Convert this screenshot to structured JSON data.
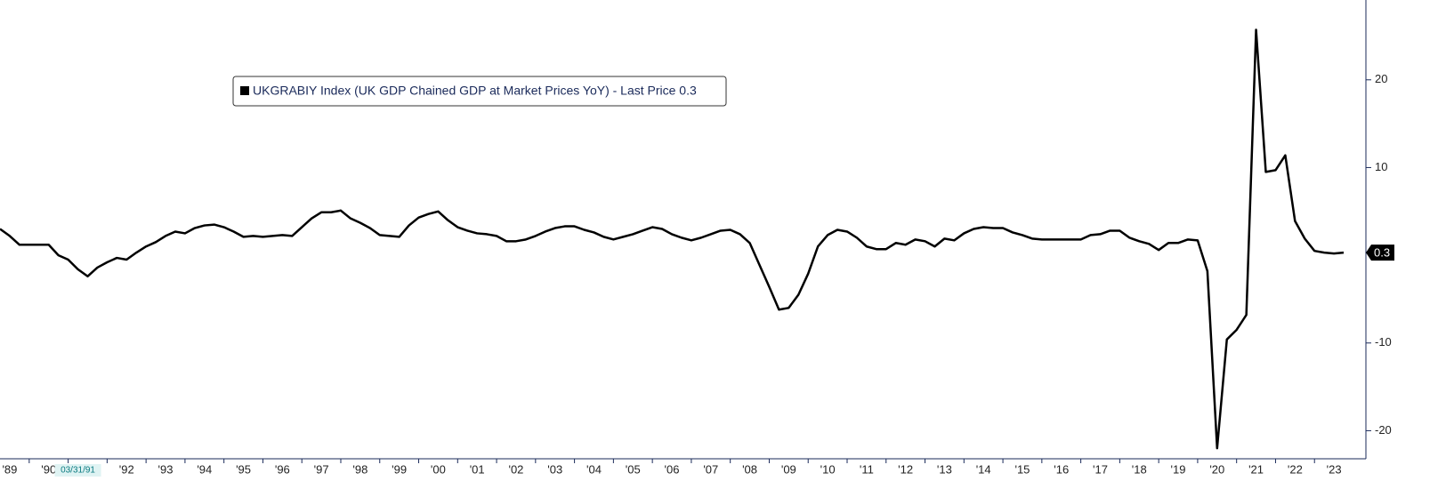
{
  "chart_data": {
    "type": "line",
    "legend": "UKGRABIY Index (UK GDP Chained GDP at Market Prices YoY) - Last Price 0.3",
    "annotation": "03/31/91",
    "annotation_x": 1991.25,
    "last_price": 0.3,
    "series": [
      {
        "name": "UKGRABIY Index (UK GDP Chained GDP at Market Prices YoY) - Last Price 0.3",
        "color": "#000000",
        "x": [
          1989.25,
          1989.5,
          1989.75,
          1990,
          1990.25,
          1990.5,
          1990.75,
          1991,
          1991.25,
          1991.5,
          1991.75,
          1992,
          1992.25,
          1992.5,
          1992.75,
          1993,
          1993.25,
          1993.5,
          1993.75,
          1994,
          1994.25,
          1994.5,
          1994.75,
          1995,
          1995.25,
          1995.5,
          1995.75,
          1996,
          1996.25,
          1996.5,
          1996.75,
          1997,
          1997.25,
          1997.5,
          1997.75,
          1998,
          1998.25,
          1998.5,
          1998.75,
          1999,
          1999.25,
          1999.5,
          1999.75,
          2000,
          2000.25,
          2000.5,
          2000.75,
          2001,
          2001.25,
          2001.5,
          2001.75,
          2002,
          2002.25,
          2002.5,
          2002.75,
          2003,
          2003.25,
          2003.5,
          2003.75,
          2004,
          2004.25,
          2004.5,
          2004.75,
          2005,
          2005.25,
          2005.5,
          2005.75,
          2006,
          2006.25,
          2006.5,
          2006.75,
          2007,
          2007.25,
          2007.5,
          2007.75,
          2008,
          2008.25,
          2008.5,
          2008.75,
          2009,
          2009.25,
          2009.5,
          2009.75,
          2010,
          2010.25,
          2010.5,
          2010.75,
          2011,
          2011.25,
          2011.5,
          2011.75,
          2012,
          2012.25,
          2012.5,
          2012.75,
          2013,
          2013.25,
          2013.5,
          2013.75,
          2014,
          2014.25,
          2014.5,
          2014.75,
          2015,
          2015.25,
          2015.5,
          2015.75,
          2016,
          2016.25,
          2016.5,
          2016.75,
          2017,
          2017.25,
          2017.5,
          2017.75,
          2018,
          2018.25,
          2018.5,
          2018.75,
          2019,
          2019.25,
          2019.5,
          2019.75,
          2020,
          2020.25,
          2020.5,
          2020.75,
          2021,
          2021.25,
          2021.5,
          2021.75,
          2022,
          2022.25,
          2022.5,
          2022.75,
          2023,
          2023.25,
          2023.5,
          2023.75
        ],
        "values": [
          3.0,
          2.2,
          1.2,
          1.2,
          1.2,
          1.2,
          0.0,
          -0.5,
          -1.6,
          -2.4,
          -1.4,
          -0.8,
          -0.3,
          -0.5,
          0.3,
          1.0,
          1.5,
          2.2,
          2.7,
          2.5,
          3.1,
          3.4,
          3.5,
          3.2,
          2.7,
          2.1,
          2.2,
          2.1,
          2.2,
          2.3,
          2.2,
          3.2,
          4.2,
          4.9,
          4.9,
          5.1,
          4.2,
          3.7,
          3.1,
          2.3,
          2.2,
          2.1,
          3.4,
          4.3,
          4.7,
          5.0,
          4.0,
          3.2,
          2.8,
          2.5,
          2.4,
          2.2,
          1.6,
          1.6,
          1.8,
          2.2,
          2.7,
          3.1,
          3.3,
          3.3,
          2.9,
          2.6,
          2.1,
          1.8,
          2.1,
          2.4,
          2.8,
          3.2,
          3.0,
          2.4,
          2.0,
          1.7,
          2.0,
          2.4,
          2.8,
          2.9,
          2.4,
          1.4,
          -1.1,
          -3.6,
          -6.2,
          -6.0,
          -4.5,
          -2.1,
          1.0,
          2.3,
          2.9,
          2.7,
          2.0,
          1.0,
          0.7,
          0.7,
          1.4,
          1.2,
          1.8,
          1.6,
          1.0,
          1.9,
          1.7,
          2.5,
          3.0,
          3.2,
          3.1,
          3.1,
          2.6,
          2.3,
          1.9,
          1.8,
          1.8,
          1.8,
          1.8,
          1.8,
          2.3,
          2.4,
          2.8,
          2.8,
          2.0,
          1.6,
          1.3,
          0.6,
          1.4,
          1.4,
          1.8,
          1.7,
          -1.8,
          -22.0,
          -9.6,
          -8.5,
          -6.8,
          25.7,
          9.5,
          9.7,
          11.4,
          3.9,
          1.9,
          0.5,
          0.3,
          0.2,
          0.3
        ]
      }
    ],
    "xlim": [
      1989.25,
      2024.32
    ],
    "xticks": [
      {
        "value": 1989,
        "label": "'89"
      },
      {
        "value": 1990,
        "label": "'90"
      },
      {
        "value": 1991,
        "label": "'91"
      },
      {
        "value": 1992,
        "label": "'92"
      },
      {
        "value": 1993,
        "label": "'93"
      },
      {
        "value": 1994,
        "label": "'94"
      },
      {
        "value": 1995,
        "label": "'95"
      },
      {
        "value": 1996,
        "label": "'96"
      },
      {
        "value": 1997,
        "label": "'97"
      },
      {
        "value": 1998,
        "label": "'98"
      },
      {
        "value": 1999,
        "label": "'99"
      },
      {
        "value": 2000,
        "label": "'00"
      },
      {
        "value": 2001,
        "label": "'01"
      },
      {
        "value": 2002,
        "label": "'02"
      },
      {
        "value": 2003,
        "label": "'03"
      },
      {
        "value": 2004,
        "label": "'04"
      },
      {
        "value": 2005,
        "label": "'05"
      },
      {
        "value": 2006,
        "label": "'06"
      },
      {
        "value": 2007,
        "label": "'07"
      },
      {
        "value": 2008,
        "label": "'08"
      },
      {
        "value": 2009,
        "label": "'09"
      },
      {
        "value": 2010,
        "label": "'10"
      },
      {
        "value": 2011,
        "label": "'11"
      },
      {
        "value": 2012,
        "label": "'12"
      },
      {
        "value": 2013,
        "label": "'13"
      },
      {
        "value": 2014,
        "label": "'14"
      },
      {
        "value": 2015,
        "label": "'15"
      },
      {
        "value": 2016,
        "label": "'16"
      },
      {
        "value": 2017,
        "label": "'17"
      },
      {
        "value": 2018,
        "label": "'18"
      },
      {
        "value": 2019,
        "label": "'19"
      },
      {
        "value": 2020,
        "label": "'20"
      },
      {
        "value": 2021,
        "label": "'21"
      },
      {
        "value": 2022,
        "label": "'22"
      },
      {
        "value": 2023,
        "label": "'23"
      }
    ],
    "ylim": [
      -23.2,
      29.1
    ],
    "yticks": [
      -20,
      -10,
      10,
      20
    ],
    "y_axis_side": "right",
    "grid": false
  }
}
